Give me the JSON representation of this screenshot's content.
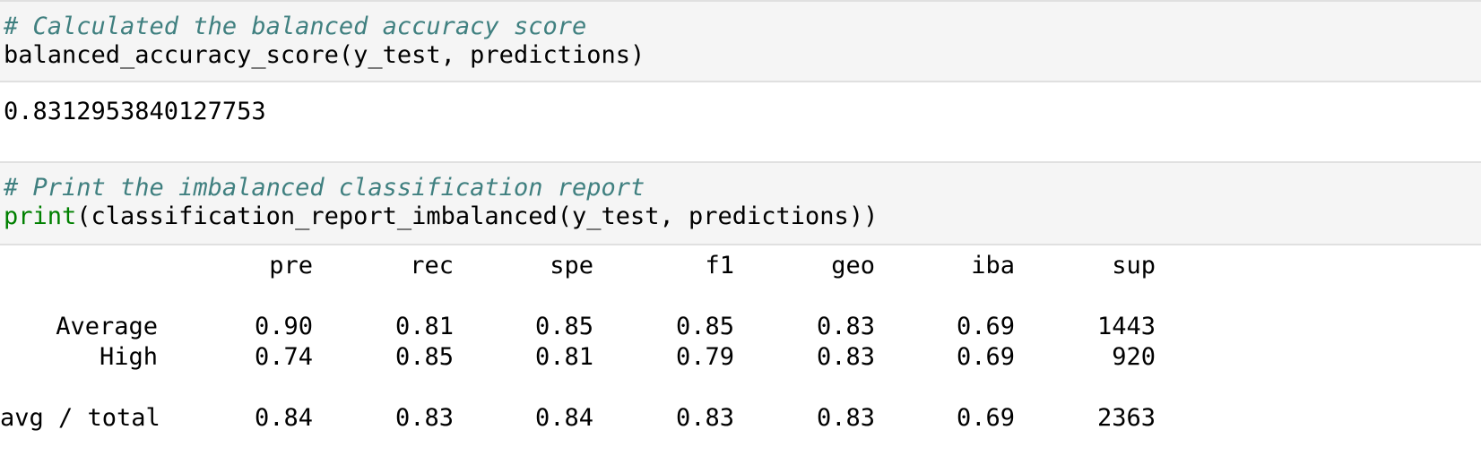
{
  "cell1": {
    "comment": "# Calculated the balanced accuracy score",
    "code": "balanced_accuracy_score(y_test, predictions)",
    "output": "0.8312953840127753"
  },
  "cell2": {
    "comment": "# Print the imbalanced classification report",
    "code_builtin": "print",
    "code_rest": "(classification_report_imbalanced(y_test, predictions))"
  },
  "report": {
    "headers": [
      "pre",
      "rec",
      "spe",
      "f1",
      "geo",
      "iba",
      "sup"
    ],
    "rows": [
      {
        "label": "Average",
        "values": [
          "0.90",
          "0.81",
          "0.85",
          "0.85",
          "0.83",
          "0.69",
          "1443"
        ]
      },
      {
        "label": "High",
        "values": [
          "0.74",
          "0.85",
          "0.81",
          "0.79",
          "0.83",
          "0.69",
          "920"
        ]
      }
    ],
    "total": {
      "label": "avg / total",
      "values": [
        "0.84",
        "0.83",
        "0.84",
        "0.83",
        "0.83",
        "0.69",
        "2363"
      ]
    }
  },
  "colors": {
    "comment": "#408080",
    "builtin": "#008000",
    "cell_background": "#f5f5f5",
    "cell_border": "#e0e0e0"
  }
}
